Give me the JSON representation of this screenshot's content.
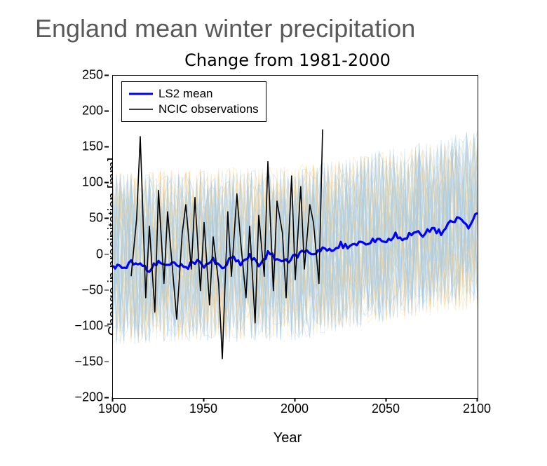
{
  "page_title": "England mean winter precipitation",
  "chart": {
    "type": "line",
    "title": "Change from 1981-2000",
    "xlabel": "Year",
    "ylabel": "Change in precipitation [mm]",
    "xlim": [
      1900,
      2100
    ],
    "ylim": [
      -200,
      250
    ],
    "xticks": [
      1900,
      1950,
      2000,
      2050,
      2100
    ],
    "yticks": [
      -200,
      -150,
      -100,
      -50,
      0,
      50,
      100,
      150,
      200,
      250
    ],
    "background_color": "#ffffff",
    "border_color": "#000000",
    "tick_fontsize": 18,
    "label_fontsize": 20,
    "title_fontsize": 24,
    "legend": {
      "position": "upper-left",
      "border_color": "#000000",
      "background": "#ffffff",
      "entries": [
        {
          "label": "LS2 mean",
          "color": "#0000ff",
          "linewidth": 3
        },
        {
          "label": "NCIC observations",
          "color": "#000000",
          "linewidth": 1.5
        }
      ]
    },
    "ensemble_background": {
      "colors": [
        "#a6cbe8",
        "#f5d089"
      ],
      "opacity": 0.35,
      "linewidth": 1,
      "members_each": 30,
      "noise_amplitude": 120,
      "blue_trend": {
        "x": [
          1900,
          2000,
          2100
        ],
        "y": [
          -5,
          0,
          55
        ]
      },
      "orange_trend": {
        "x": [
          1900,
          2000,
          2100
        ],
        "y": [
          -5,
          5,
          45
        ]
      }
    },
    "series": {
      "ls2_mean": {
        "color": "#0000ff",
        "linewidth": 3.2,
        "x": [
          1900,
          1905,
          1910,
          1915,
          1920,
          1925,
          1930,
          1935,
          1940,
          1945,
          1950,
          1955,
          1960,
          1965,
          1970,
          1975,
          1980,
          1985,
          1990,
          1995,
          2000,
          2005,
          2010,
          2015,
          2020,
          2025,
          2030,
          2035,
          2040,
          2045,
          2050,
          2055,
          2060,
          2065,
          2070,
          2075,
          2080,
          2085,
          2090,
          2095,
          2100
        ],
        "y": [
          -15,
          -20,
          -10,
          -14,
          -22,
          -8,
          -16,
          -12,
          -18,
          -10,
          -14,
          -8,
          -20,
          -4,
          -12,
          -2,
          -14,
          2,
          -6,
          -10,
          -2,
          6,
          2,
          10,
          4,
          14,
          10,
          18,
          14,
          24,
          18,
          28,
          22,
          34,
          26,
          38,
          30,
          44,
          52,
          38,
          58
        ]
      },
      "ncic_obs": {
        "color": "#000000",
        "linewidth": 1.6,
        "x_start": 1910,
        "x_end": 2015,
        "x": [
          1910,
          1913,
          1915,
          1918,
          1920,
          1923,
          1925,
          1928,
          1930,
          1933,
          1935,
          1938,
          1940,
          1943,
          1945,
          1948,
          1950,
          1953,
          1955,
          1958,
          1960,
          1963,
          1965,
          1968,
          1970,
          1973,
          1975,
          1978,
          1980,
          1983,
          1985,
          1988,
          1990,
          1993,
          1995,
          1998,
          2000,
          2003,
          2005,
          2008,
          2010,
          2013,
          2015
        ],
        "y": [
          -30,
          50,
          165,
          -60,
          40,
          -80,
          90,
          -40,
          60,
          -30,
          -90,
          30,
          70,
          -20,
          80,
          -50,
          45,
          -70,
          25,
          -40,
          -145,
          60,
          -30,
          85,
          20,
          -60,
          40,
          -95,
          55,
          -30,
          130,
          -50,
          75,
          30,
          -60,
          110,
          -35,
          95,
          -20,
          70,
          45,
          -40,
          175
        ]
      }
    }
  },
  "main_title_style": {
    "fontsize": 36,
    "color": "#595959",
    "weight": 400
  }
}
